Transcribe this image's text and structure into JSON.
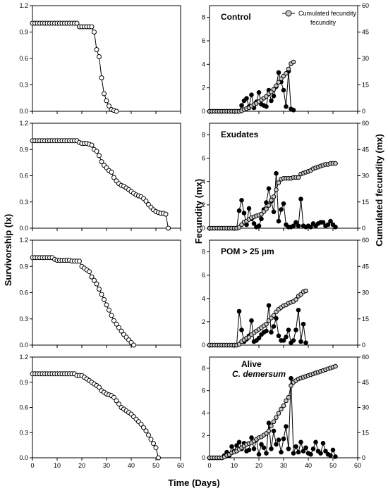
{
  "figure": {
    "xlabel": "Time (Days)",
    "left_ylabel": "Survivorship (lx)",
    "right_ylabel": "Fecundity (mx)",
    "right_ylabel2": "Cumulated fecundity (mx)",
    "legend_label": "Cumulated fecundity",
    "colors": {
      "open_marker": "#ffffff",
      "grey_marker": "#c8c8c8",
      "filled_marker": "#000000",
      "axis": "#000000"
    }
  },
  "chart_data": [
    {
      "type": "line",
      "panel": "survivorship-control",
      "title": "",
      "xlim": [
        0,
        60
      ],
      "ylim": [
        0,
        1.2
      ],
      "x": [
        0,
        1,
        2,
        3,
        4,
        5,
        6,
        7,
        8,
        9,
        10,
        11,
        12,
        13,
        14,
        15,
        16,
        17,
        18,
        19,
        20,
        21,
        22,
        23,
        24,
        25,
        26,
        27,
        28,
        29,
        30,
        31,
        32,
        33,
        34
      ],
      "series": [
        {
          "values": [
            1,
            1,
            1,
            1,
            1,
            1,
            1,
            1,
            1,
            1,
            1,
            1,
            1,
            1,
            1,
            1,
            1,
            1,
            1,
            0.96,
            0.96,
            0.96,
            0.96,
            0.96,
            0.96,
            0.9,
            0.7,
            0.62,
            0.38,
            0.2,
            0.12,
            0.06,
            0.02,
            0.01,
            0
          ]
        }
      ]
    },
    {
      "type": "line",
      "panel": "survivorship-exudates",
      "title": "",
      "xlim": [
        0,
        60
      ],
      "ylim": [
        0,
        1.2
      ],
      "x": [
        0,
        1,
        2,
        3,
        4,
        5,
        6,
        7,
        8,
        9,
        10,
        11,
        12,
        13,
        14,
        15,
        16,
        17,
        18,
        19,
        20,
        21,
        22,
        23,
        24,
        25,
        26,
        27,
        28,
        29,
        30,
        31,
        32,
        33,
        34,
        35,
        36,
        37,
        38,
        39,
        40,
        41,
        42,
        43,
        44,
        45,
        46,
        47,
        48,
        49,
        50,
        51,
        52,
        53,
        54,
        55
      ],
      "series": [
        {
          "values": [
            1,
            1,
            1,
            1,
            1,
            1,
            1,
            1,
            1,
            1,
            1,
            1,
            1,
            1,
            1,
            1,
            1,
            1,
            1,
            0.98,
            0.97,
            0.97,
            0.97,
            0.96,
            0.95,
            0.9,
            0.88,
            0.83,
            0.76,
            0.72,
            0.69,
            0.66,
            0.64,
            0.58,
            0.54,
            0.51,
            0.49,
            0.48,
            0.46,
            0.44,
            0.42,
            0.4,
            0.38,
            0.37,
            0.36,
            0.34,
            0.31,
            0.27,
            0.24,
            0.21,
            0.19,
            0.18,
            0.17,
            0.17,
            0.16,
            0
          ]
        }
      ]
    },
    {
      "type": "line",
      "panel": "survivorship-pom",
      "title": "",
      "xlim": [
        0,
        60
      ],
      "ylim": [
        0,
        1.2
      ],
      "x": [
        0,
        1,
        2,
        3,
        4,
        5,
        6,
        7,
        8,
        9,
        10,
        11,
        12,
        13,
        14,
        15,
        16,
        17,
        18,
        19,
        20,
        21,
        22,
        23,
        24,
        25,
        26,
        27,
        28,
        29,
        30,
        31,
        32,
        33,
        34,
        35,
        36,
        37,
        38,
        39,
        40,
        41
      ],
      "series": [
        {
          "values": [
            1,
            1,
            1,
            1,
            1,
            1,
            1,
            1,
            1,
            0.98,
            0.97,
            0.97,
            0.97,
            0.97,
            0.97,
            0.97,
            0.96,
            0.96,
            0.96,
            0.96,
            0.9,
            0.88,
            0.86,
            0.84,
            0.78,
            0.74,
            0.7,
            0.64,
            0.58,
            0.52,
            0.46,
            0.4,
            0.34,
            0.28,
            0.24,
            0.2,
            0.16,
            0.12,
            0.09,
            0.06,
            0.03,
            0
          ]
        }
      ]
    },
    {
      "type": "line",
      "panel": "survivorship-alive",
      "title": "",
      "xlim": [
        0,
        60
      ],
      "ylim": [
        0,
        1.2
      ],
      "x": [
        0,
        1,
        2,
        3,
        4,
        5,
        6,
        7,
        8,
        9,
        10,
        11,
        12,
        13,
        14,
        15,
        16,
        17,
        18,
        19,
        20,
        21,
        22,
        23,
        24,
        25,
        26,
        27,
        28,
        29,
        30,
        31,
        32,
        33,
        34,
        35,
        36,
        37,
        38,
        39,
        40,
        41,
        42,
        43,
        44,
        45,
        46,
        47,
        48,
        49,
        50,
        51
      ],
      "series": [
        {
          "values": [
            1,
            1,
            1,
            1,
            1,
            1,
            1,
            1,
            1,
            1,
            1,
            1,
            1,
            1,
            1,
            1,
            1,
            1,
            0.98,
            0.98,
            0.98,
            0.96,
            0.94,
            0.92,
            0.9,
            0.88,
            0.86,
            0.84,
            0.8,
            0.78,
            0.76,
            0.75,
            0.74,
            0.72,
            0.68,
            0.64,
            0.6,
            0.58,
            0.56,
            0.54,
            0.52,
            0.49,
            0.46,
            0.43,
            0.4,
            0.36,
            0.32,
            0.27,
            0.22,
            0.17,
            0.12,
            0
          ]
        }
      ]
    },
    {
      "type": "line",
      "panel": "fecundity-control",
      "title": "Control",
      "xlim": [
        0,
        60
      ],
      "ylim": [
        0,
        9
      ],
      "y2lim": [
        0,
        60
      ],
      "x": [
        0,
        1,
        2,
        3,
        4,
        5,
        6,
        7,
        8,
        9,
        10,
        11,
        12,
        13,
        14,
        15,
        16,
        17,
        18,
        19,
        20,
        21,
        22,
        23,
        24,
        25,
        26,
        27,
        28,
        29,
        30,
        31,
        32,
        33,
        34
      ],
      "series": [
        {
          "axis": "left",
          "marker": "filled",
          "values": [
            0,
            0,
            0,
            0,
            0,
            0,
            0,
            0,
            0,
            0,
            0,
            0,
            0,
            0.5,
            0.9,
            1.1,
            0.4,
            1.4,
            0.3,
            0.8,
            1.6,
            0.6,
            0.5,
            0.4,
            1.8,
            0.9,
            1.3,
            2.1,
            3.3,
            2.5,
            1.8,
            0.4,
            3.4,
            0.2,
            0.1
          ]
        },
        {
          "axis": "right",
          "marker": "grey",
          "values": [
            0,
            0,
            0,
            0,
            0,
            0,
            0,
            0,
            0,
            0,
            0,
            0,
            0,
            0.3,
            1,
            1.5,
            2,
            3,
            3.8,
            4.5,
            5.5,
            6.5,
            7.5,
            8.5,
            10,
            11,
            12.5,
            14.5,
            16.5,
            18.5,
            20,
            21.5,
            24,
            27,
            28
          ]
        }
      ]
    },
    {
      "type": "line",
      "panel": "fecundity-exudates",
      "title": "Exudates",
      "xlim": [
        0,
        60
      ],
      "ylim": [
        0,
        9
      ],
      "y2lim": [
        0,
        60
      ],
      "x": [
        0,
        1,
        2,
        3,
        4,
        5,
        6,
        7,
        8,
        9,
        10,
        11,
        12,
        13,
        14,
        15,
        16,
        17,
        18,
        19,
        20,
        21,
        22,
        23,
        24,
        25,
        26,
        27,
        28,
        29,
        30,
        31,
        32,
        33,
        34,
        35,
        36,
        37,
        38,
        39,
        40,
        41,
        42,
        43,
        44,
        45,
        46,
        47,
        48,
        49,
        50,
        51
      ],
      "series": [
        {
          "axis": "left",
          "marker": "filled",
          "values": [
            0,
            0,
            0,
            0,
            0,
            0,
            0,
            0,
            0,
            0,
            0,
            0,
            1.5,
            2.4,
            1.3,
            0.3,
            1.7,
            0.8,
            0.4,
            0.1,
            0.2,
            0.8,
            1.6,
            2.2,
            3.4,
            2.3,
            1.4,
            4.7,
            0.6,
            1.6,
            2.1,
            0.3,
            0.1,
            0.1,
            0.2,
            0.5,
            0.2,
            2.5,
            0.2,
            0.1,
            0.2,
            0.1,
            0.4,
            0.2,
            0.4,
            0.5,
            0.5,
            0.2,
            0.3,
            0.6,
            0.3,
            0.1
          ]
        },
        {
          "axis": "right",
          "marker": "grey",
          "values": [
            0,
            0,
            0,
            0,
            0,
            0,
            0,
            0,
            0,
            0,
            0,
            0,
            0.5,
            2,
            3.5,
            4,
            5,
            6,
            6.5,
            7,
            7.5,
            8,
            9.5,
            11,
            13,
            16,
            18,
            22,
            26,
            28,
            28.5,
            28.5,
            28.5,
            28.5,
            29,
            29,
            29,
            31,
            31.5,
            32,
            32.5,
            33,
            34,
            34.5,
            35,
            35.5,
            36,
            36.5,
            36.5,
            37,
            37,
            37
          ]
        }
      ]
    },
    {
      "type": "line",
      "panel": "fecundity-pom",
      "title": "POM > 25 μm",
      "xlim": [
        0,
        60
      ],
      "ylim": [
        0,
        9
      ],
      "y2lim": [
        0,
        60
      ],
      "x": [
        0,
        1,
        2,
        3,
        4,
        5,
        6,
        7,
        8,
        9,
        10,
        11,
        12,
        13,
        14,
        15,
        16,
        17,
        18,
        19,
        20,
        21,
        22,
        23,
        24,
        25,
        26,
        27,
        28,
        29,
        30,
        31,
        32,
        33,
        34,
        35,
        36,
        37,
        38,
        39
      ],
      "series": [
        {
          "axis": "left",
          "marker": "filled",
          "values": [
            0,
            0,
            0,
            0,
            0,
            0,
            0,
            0,
            0,
            0,
            0,
            0,
            2.9,
            1.3,
            0.3,
            0.5,
            0.8,
            2.1,
            0.3,
            0.4,
            0.6,
            0.9,
            1.1,
            1.2,
            3.4,
            1.1,
            1.6,
            2.3,
            0.8,
            0.4,
            0.4,
            0.7,
            1.3,
            0.2,
            0.4,
            1.3,
            3.0,
            0.3,
            1.8,
            0.2
          ]
        },
        {
          "axis": "right",
          "marker": "grey",
          "values": [
            0,
            0,
            0,
            0,
            0,
            0,
            0,
            0,
            0,
            0,
            0,
            0,
            0.5,
            2,
            3,
            4,
            4.5,
            6,
            7,
            8,
            9,
            10,
            11,
            12,
            14,
            15.5,
            17,
            19,
            20.5,
            21.5,
            22.5,
            23,
            24,
            24.5,
            25,
            26,
            28,
            29,
            30.5,
            31
          ]
        }
      ]
    },
    {
      "type": "line",
      "panel": "fecundity-alive",
      "title": "Alive C. demersum",
      "xlim": [
        0,
        60
      ],
      "ylim": [
        0,
        9
      ],
      "y2lim": [
        0,
        60
      ],
      "x": [
        0,
        1,
        2,
        3,
        4,
        5,
        6,
        7,
        8,
        9,
        10,
        11,
        12,
        13,
        14,
        15,
        16,
        17,
        18,
        19,
        20,
        21,
        22,
        23,
        24,
        25,
        26,
        27,
        28,
        29,
        30,
        31,
        32,
        33,
        34,
        35,
        36,
        37,
        38,
        39,
        40,
        41,
        42,
        43,
        44,
        45,
        46,
        47,
        48,
        49,
        50,
        51
      ],
      "series": [
        {
          "axis": "left",
          "marker": "filled",
          "values": [
            0,
            0,
            0,
            0,
            0,
            0,
            0.2,
            0.5,
            0.2,
            1.0,
            0.6,
            1.1,
            1.4,
            0.8,
            1.3,
            0.6,
            0.7,
            1.8,
            0.8,
            1.6,
            0.3,
            1.2,
            0.9,
            0.4,
            3.1,
            0.8,
            2.4,
            1.2,
            1.6,
            0.5,
            1.7,
            2.8,
            0.8,
            7.1,
            0.4,
            1.0,
            0.5,
            1.4,
            0.6,
            0.9,
            0.4,
            0.3,
            0.8,
            1.4,
            0.6,
            0.4,
            1.3,
            0.6,
            0.3,
            0.2,
            0.7,
            0.1
          ]
        },
        {
          "axis": "right",
          "marker": "grey",
          "values": [
            0,
            0,
            0,
            0,
            0,
            0,
            0.5,
            1.5,
            2,
            3,
            3.5,
            4,
            5,
            6,
            7,
            8,
            8.5,
            9,
            10,
            11,
            12,
            12.5,
            13.5,
            14.5,
            16,
            19,
            21.5,
            24,
            26.5,
            29,
            31,
            34,
            36,
            43,
            45,
            46,
            47,
            47.5,
            48,
            48.5,
            49,
            49.5,
            50,
            50.5,
            51,
            51.5,
            52,
            52.5,
            53,
            53.5,
            54,
            54.5
          ]
        }
      ]
    }
  ]
}
